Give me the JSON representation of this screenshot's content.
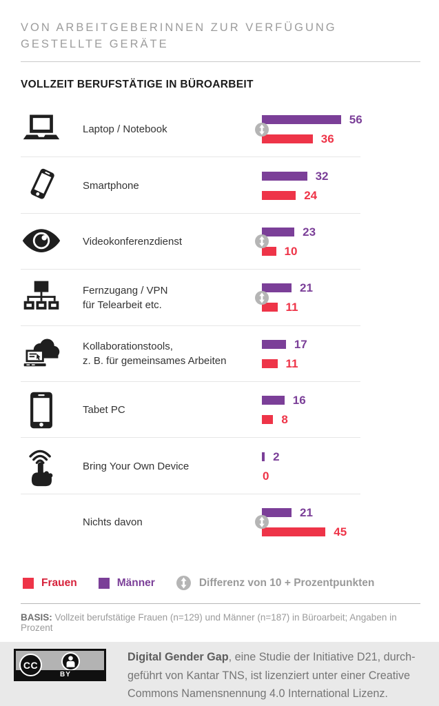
{
  "header": {
    "title_line1": "VON ARBEITGEBERINNEN ZUR VERFÜGUNG",
    "title_line2": "GESTELLTE GERÄTE",
    "subtitle": "VOLLZEIT BERUFSTÄTIGE IN BÜROARBEIT"
  },
  "chart_data": {
    "type": "bar",
    "orientation": "horizontal",
    "title": "Von Arbeitgeberinnen zur Verfügung gestellte Geräte",
    "subtitle": "Vollzeit berufstätige in Büroarbeit",
    "unit": "Prozent",
    "value_labels": true,
    "axis_visible": false,
    "categories": [
      "Laptop / Notebook",
      "Smartphone",
      "Videokonferenzdienst",
      "Fernzugang / VPN für Telearbeit etc.",
      "Kollaborationstools, z. B. für gemeinsames Arbeiten",
      "Tabet PC",
      "Bring Your Own Device",
      "Nichts davon"
    ],
    "series": [
      {
        "name": "Männer",
        "color": "#7b3f98",
        "values": [
          56,
          32,
          23,
          21,
          17,
          16,
          2,
          21
        ]
      },
      {
        "name": "Frauen",
        "color": "#ee3448",
        "values": [
          36,
          24,
          10,
          11,
          11,
          8,
          0,
          45
        ]
      }
    ],
    "diff_marker": {
      "label": "Differenz von 10 + Prozentpunkten",
      "marked_row_indices": [
        0,
        2,
        3,
        7
      ]
    }
  },
  "rows": [
    {
      "icon": "laptop-icon",
      "label_lines": [
        "Laptop / Notebook"
      ],
      "diff_badge": true
    },
    {
      "icon": "smartphone-icon",
      "label_lines": [
        "Smartphone"
      ],
      "diff_badge": false
    },
    {
      "icon": "eye-icon",
      "label_lines": [
        "Videokonferenzdienst"
      ],
      "diff_badge": true
    },
    {
      "icon": "network-icon",
      "label_lines": [
        "Fernzugang / VPN",
        "für Telearbeit etc."
      ],
      "diff_badge": true
    },
    {
      "icon": "cloud-laptop-icon",
      "label_lines": [
        "Kollaborationstools,",
        "z. B. für gemeinsames Arbeiten"
      ],
      "diff_badge": false
    },
    {
      "icon": "tablet-icon",
      "label_lines": [
        "Tabet PC"
      ],
      "diff_badge": false
    },
    {
      "icon": "touch-hand-icon",
      "label_lines": [
        "Bring Your Own Device"
      ],
      "diff_badge": false
    },
    {
      "icon": null,
      "label_lines": [
        "Nichts davon"
      ],
      "diff_badge": true
    }
  ],
  "legend": {
    "frauen": "Frauen",
    "maenner": "Männer",
    "diff": "Differenz von 10 + Prozentpunkten"
  },
  "basis": {
    "label": "BASIS:",
    "text": " Vollzeit berufstätige Frauen (n=129) und Männer (n=187) in Büroarbeit; Angaben in Prozent"
  },
  "footer": {
    "cc_label": "CC",
    "by_label": "BY",
    "line1_bold": "Digital Gender Gap",
    "line1_rest": ", eine Studie der Initiative D21, durch-",
    "line2": "geführt von Kantar TNS, ist lizenziert unter einer Creative",
    "line3": "Commons Namensnennung 4.0 International Lizenz."
  },
  "colors": {
    "maenner": "#7b3f98",
    "frauen": "#ee3448",
    "diff_badge": "#b5b5b5",
    "title_gray": "#9c9c9c",
    "footer_bg": "#e9e9e9"
  }
}
